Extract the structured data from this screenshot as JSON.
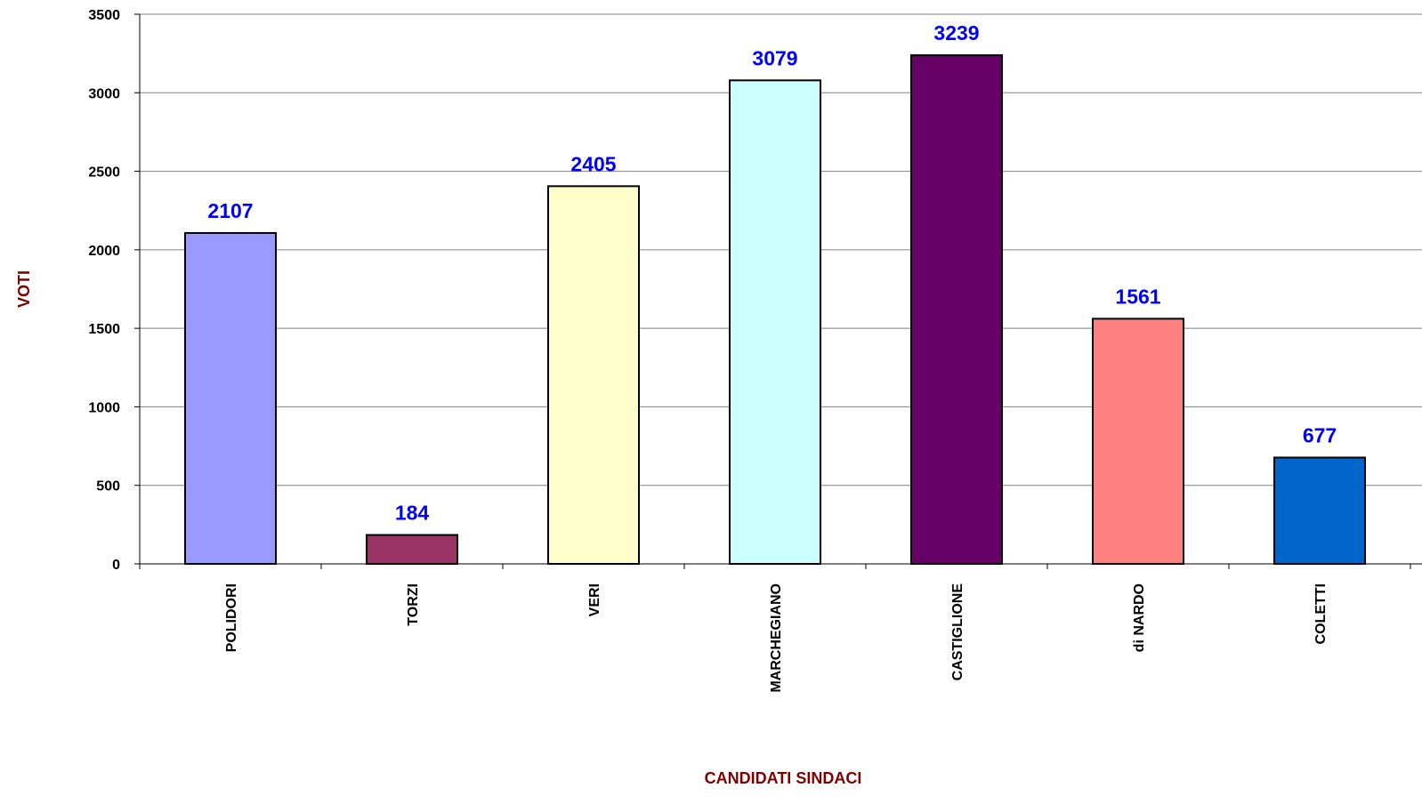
{
  "chart_data": {
    "type": "bar",
    "title": "",
    "xlabel": "CANDIDATI SINDACI",
    "ylabel": "VOTI",
    "categories": [
      "POLIDORI",
      "TORZI",
      "VERI",
      "MARCHEGIANO",
      "CASTIGLIONE",
      "di NARDO",
      "COLETTI"
    ],
    "values": [
      2107,
      184,
      2405,
      3079,
      3239,
      1561,
      677
    ],
    "value_labels": [
      "2107",
      "184",
      "2405",
      "3079",
      "3239",
      "1561",
      "677"
    ],
    "colors": [
      "#9999ff",
      "#993366",
      "#ffffcc",
      "#ccffff",
      "#660066",
      "#ff8080",
      "#0066cc"
    ],
    "ylim": [
      0,
      3500
    ],
    "yticks": [
      0,
      500,
      1000,
      1500,
      2000,
      2500,
      3000,
      3500
    ],
    "ytick_labels": [
      "0",
      "500",
      "1000",
      "1500",
      "2000",
      "2500",
      "3000",
      "3500"
    ],
    "grid": true,
    "legend": "none",
    "value_label_color": "#0000ff",
    "axis_title_color": "#800000",
    "gridline_color": "#808080"
  }
}
